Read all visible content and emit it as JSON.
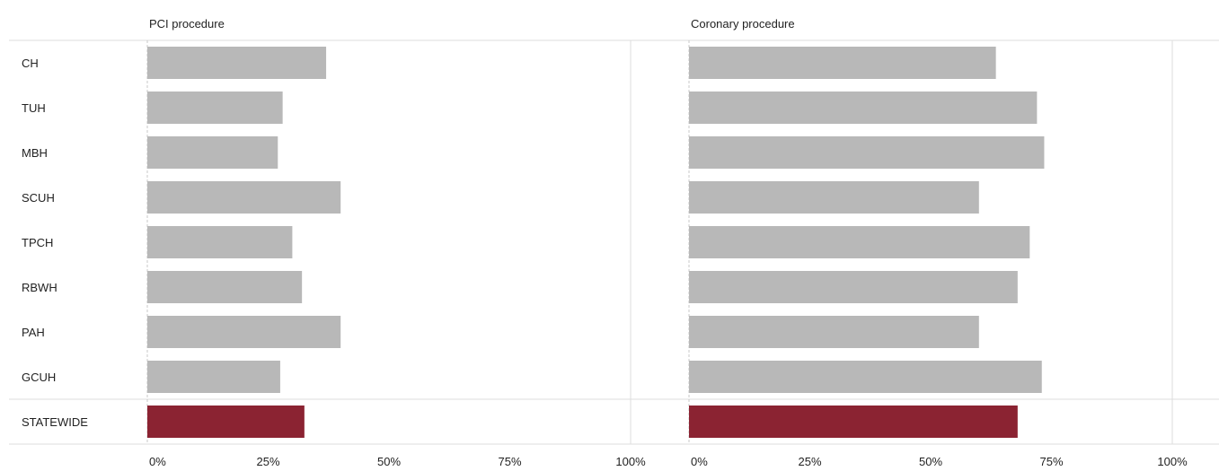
{
  "chart_data": {
    "type": "bar",
    "orientation": "horizontal",
    "grid": true,
    "categories": [
      "CH",
      "TUH",
      "MBH",
      "SCUH",
      "TPCH",
      "RBWH",
      "PAH",
      "GCUH",
      "STATEWIDE"
    ],
    "highlight_category": "STATEWIDE",
    "colors": {
      "bar": "#b8b8b8",
      "highlight": "#8b2332"
    },
    "x_ticks": [
      "0%",
      "25%",
      "50%",
      "75%",
      "100%"
    ],
    "xlim": [
      0,
      100
    ],
    "panels": [
      {
        "title": "PCI procedure",
        "values": [
          37,
          28,
          27,
          40,
          30,
          32,
          40,
          27.5,
          32.5
        ]
      },
      {
        "title": "Coronary procedure",
        "values": [
          63.5,
          72,
          73.5,
          60,
          70.5,
          68,
          60,
          73,
          68
        ]
      }
    ]
  }
}
